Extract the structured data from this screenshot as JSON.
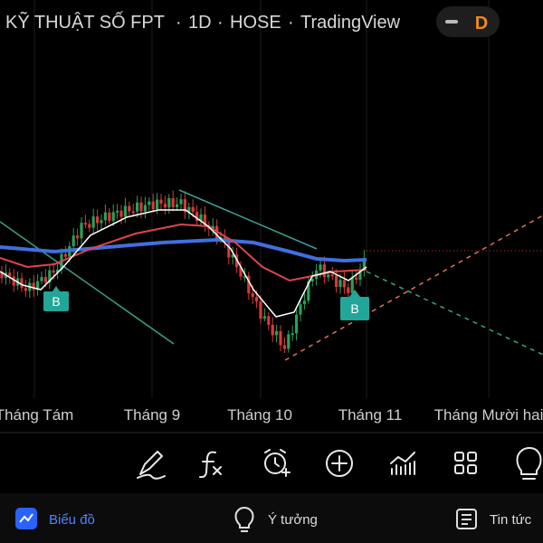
{
  "header": {
    "symbol": "KỸ THUẬT SỐ FPT",
    "interval": "1D",
    "exchange": "HOSE",
    "source": "TradingView",
    "badge": "D"
  },
  "chart": {
    "markers": [
      "B",
      "B"
    ],
    "time_labels": [
      "Tháng Tám",
      "Tháng 9",
      "Tháng 10",
      "Tháng 11",
      "Tháng Mười hai"
    ]
  },
  "nav": {
    "items": [
      "Biểu đồ",
      "Ý tưởng",
      "Tin tức"
    ]
  }
}
